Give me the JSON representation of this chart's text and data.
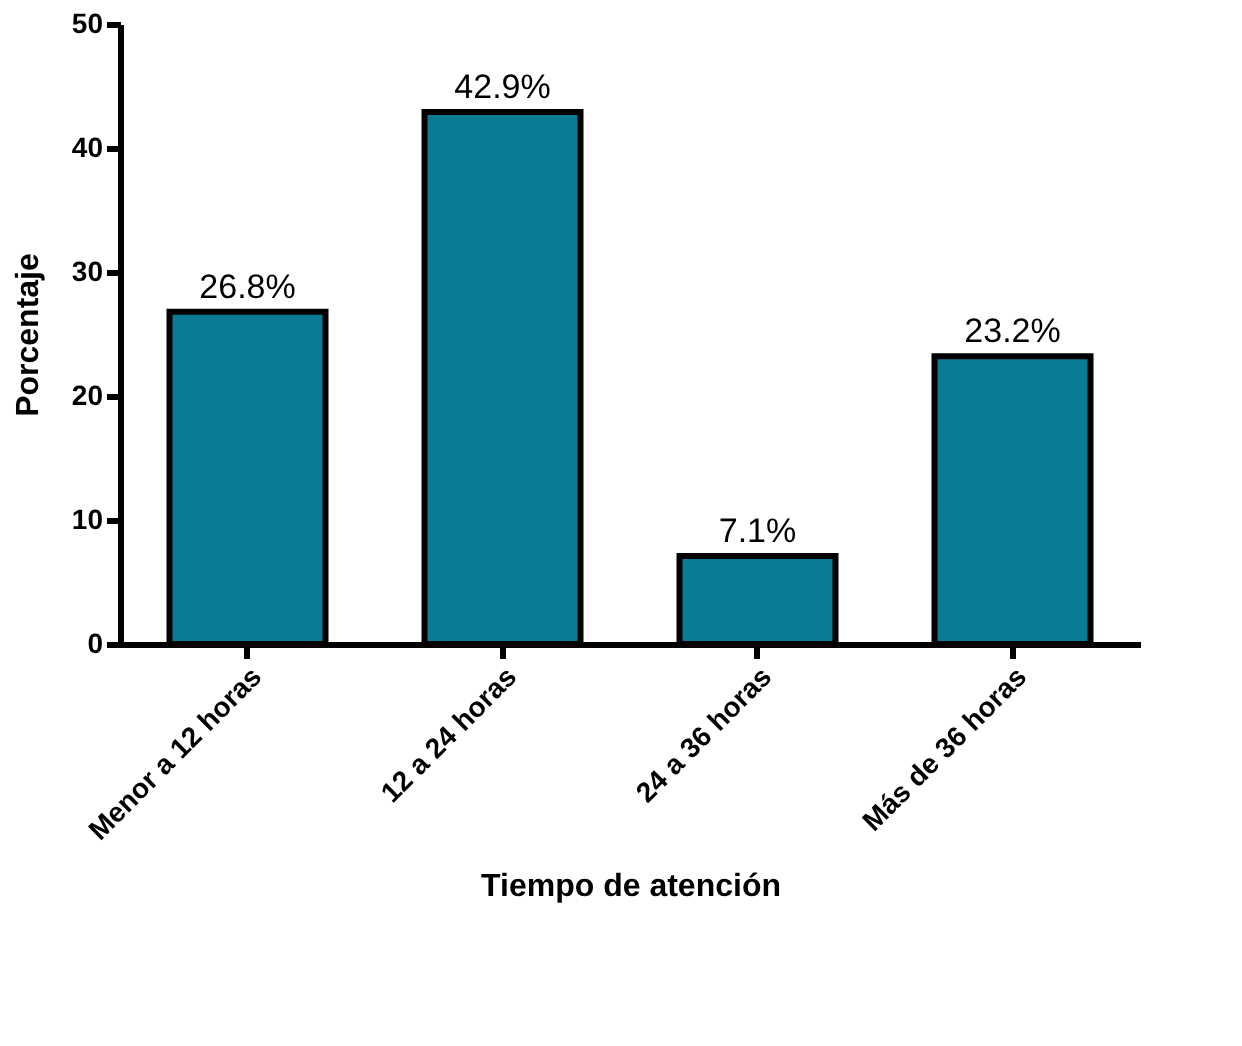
{
  "chart_data": {
    "type": "bar",
    "xlabel": "Tiempo de atención",
    "ylabel": "Porcentaje",
    "categories": [
      "Menor a 12 horas",
      "12 a 24 horas",
      "24 a 36 horas",
      "Más de 36 horas"
    ],
    "values": [
      26.8,
      42.9,
      7.1,
      23.2
    ],
    "value_labels": [
      "26.8%",
      "42.9%",
      "7.1%",
      "23.2%"
    ],
    "color": "#0a7b94",
    "ylim": [
      0,
      50
    ],
    "yticks": [
      0,
      10,
      20,
      30,
      40,
      50
    ],
    "grid": false
  }
}
